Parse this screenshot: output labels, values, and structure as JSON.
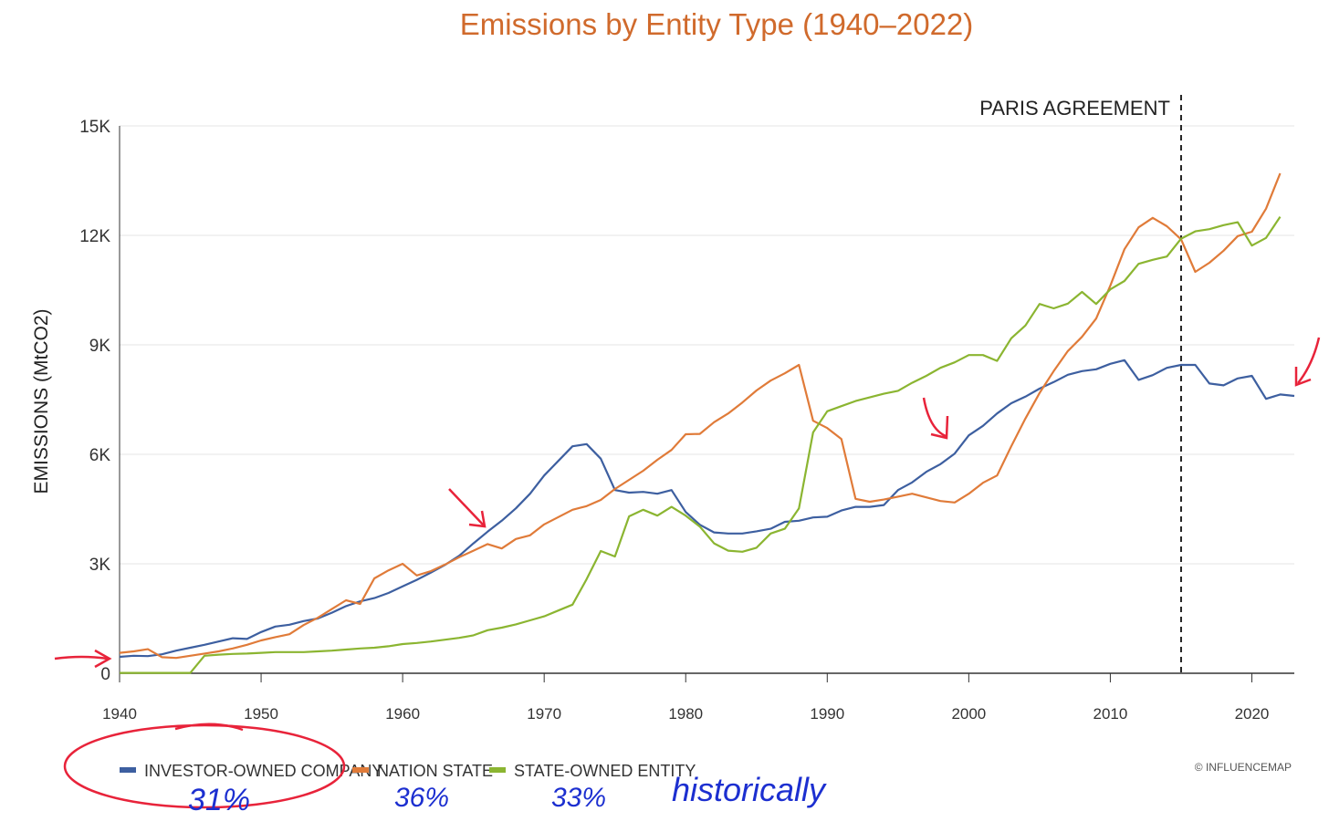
{
  "chart_data": {
    "type": "line",
    "title": "Emissions by Entity Type (1940–2022)",
    "ylabel": "EMISSIONS (MtCO2)",
    "xlabel": "",
    "xlim": [
      1940,
      2023
    ],
    "ylim": [
      0,
      15000
    ],
    "x_ticks": [
      1940,
      1950,
      1960,
      1970,
      1980,
      1990,
      2000,
      2010,
      2020
    ],
    "y_ticks": [
      {
        "value": 0,
        "label": "0"
      },
      {
        "value": 3000,
        "label": "3K"
      },
      {
        "value": 6000,
        "label": "6K"
      },
      {
        "value": 9000,
        "label": "9K"
      },
      {
        "value": 12000,
        "label": "12K"
      },
      {
        "value": 15000,
        "label": "15K"
      }
    ],
    "grid": "horizontal",
    "legend_position": "bottom-left",
    "credit": "© INFLUENCEMAP",
    "annotations": [
      {
        "type": "vertical-dashed-line",
        "x": 2015,
        "label": "PARIS AGREEMENT"
      }
    ],
    "series": [
      {
        "name": "INVESTOR-OWNED COMPANY",
        "color": "#3d5fa0",
        "points": [
          [
            1940,
            450
          ],
          [
            1941,
            480
          ],
          [
            1942,
            470
          ],
          [
            1943,
            520
          ],
          [
            1944,
            620
          ],
          [
            1945,
            700
          ],
          [
            1946,
            780
          ],
          [
            1947,
            870
          ],
          [
            1948,
            960
          ],
          [
            1949,
            940
          ],
          [
            1950,
            1130
          ],
          [
            1951,
            1280
          ],
          [
            1952,
            1330
          ],
          [
            1953,
            1430
          ],
          [
            1954,
            1500
          ],
          [
            1955,
            1660
          ],
          [
            1956,
            1840
          ],
          [
            1957,
            1970
          ],
          [
            1958,
            2060
          ],
          [
            1959,
            2200
          ],
          [
            1960,
            2380
          ],
          [
            1961,
            2560
          ],
          [
            1962,
            2760
          ],
          [
            1963,
            2970
          ],
          [
            1964,
            3220
          ],
          [
            1965,
            3560
          ],
          [
            1966,
            3880
          ],
          [
            1967,
            4180
          ],
          [
            1968,
            4520
          ],
          [
            1969,
            4920
          ],
          [
            1970,
            5420
          ],
          [
            1971,
            5820
          ],
          [
            1972,
            6220
          ],
          [
            1973,
            6280
          ],
          [
            1974,
            5880
          ],
          [
            1975,
            5020
          ],
          [
            1976,
            4950
          ],
          [
            1977,
            4970
          ],
          [
            1978,
            4920
          ],
          [
            1979,
            5020
          ],
          [
            1980,
            4420
          ],
          [
            1981,
            4070
          ],
          [
            1982,
            3860
          ],
          [
            1983,
            3830
          ],
          [
            1984,
            3830
          ],
          [
            1985,
            3890
          ],
          [
            1986,
            3960
          ],
          [
            1987,
            4150
          ],
          [
            1988,
            4180
          ],
          [
            1989,
            4270
          ],
          [
            1990,
            4290
          ],
          [
            1991,
            4460
          ],
          [
            1992,
            4560
          ],
          [
            1993,
            4560
          ],
          [
            1994,
            4610
          ],
          [
            1995,
            5020
          ],
          [
            1996,
            5230
          ],
          [
            1997,
            5520
          ],
          [
            1998,
            5730
          ],
          [
            1999,
            6020
          ],
          [
            2000,
            6520
          ],
          [
            2001,
            6780
          ],
          [
            2002,
            7120
          ],
          [
            2003,
            7400
          ],
          [
            2004,
            7580
          ],
          [
            2005,
            7800
          ],
          [
            2006,
            7980
          ],
          [
            2007,
            8180
          ],
          [
            2008,
            8280
          ],
          [
            2009,
            8330
          ],
          [
            2010,
            8480
          ],
          [
            2011,
            8580
          ],
          [
            2012,
            8040
          ],
          [
            2013,
            8170
          ],
          [
            2014,
            8370
          ],
          [
            2015,
            8450
          ],
          [
            2016,
            8450
          ],
          [
            2017,
            7940
          ],
          [
            2018,
            7890
          ],
          [
            2019,
            8080
          ],
          [
            2020,
            8150
          ],
          [
            2021,
            7520
          ],
          [
            2022,
            7640
          ],
          [
            2023,
            7600
          ]
        ]
      },
      {
        "name": "NATION STATE",
        "color": "#e07b39",
        "points": [
          [
            1940,
            560
          ],
          [
            1941,
            600
          ],
          [
            1942,
            660
          ],
          [
            1943,
            440
          ],
          [
            1944,
            420
          ],
          [
            1945,
            480
          ],
          [
            1946,
            540
          ],
          [
            1947,
            600
          ],
          [
            1948,
            680
          ],
          [
            1949,
            780
          ],
          [
            1950,
            900
          ],
          [
            1951,
            990
          ],
          [
            1952,
            1070
          ],
          [
            1953,
            1320
          ],
          [
            1954,
            1520
          ],
          [
            1955,
            1760
          ],
          [
            1956,
            2000
          ],
          [
            1957,
            1900
          ],
          [
            1958,
            2600
          ],
          [
            1959,
            2820
          ],
          [
            1960,
            3000
          ],
          [
            1961,
            2680
          ],
          [
            1962,
            2800
          ],
          [
            1963,
            2980
          ],
          [
            1964,
            3180
          ],
          [
            1965,
            3360
          ],
          [
            1966,
            3540
          ],
          [
            1967,
            3420
          ],
          [
            1968,
            3680
          ],
          [
            1969,
            3780
          ],
          [
            1970,
            4080
          ],
          [
            1971,
            4280
          ],
          [
            1972,
            4480
          ],
          [
            1973,
            4580
          ],
          [
            1974,
            4750
          ],
          [
            1975,
            5050
          ],
          [
            1976,
            5300
          ],
          [
            1977,
            5550
          ],
          [
            1978,
            5850
          ],
          [
            1979,
            6120
          ],
          [
            1980,
            6550
          ],
          [
            1981,
            6560
          ],
          [
            1982,
            6880
          ],
          [
            1983,
            7120
          ],
          [
            1984,
            7420
          ],
          [
            1985,
            7750
          ],
          [
            1986,
            8020
          ],
          [
            1987,
            8220
          ],
          [
            1988,
            8450
          ],
          [
            1989,
            6920
          ],
          [
            1990,
            6720
          ],
          [
            1991,
            6420
          ],
          [
            1992,
            4780
          ],
          [
            1993,
            4700
          ],
          [
            1994,
            4760
          ],
          [
            1995,
            4840
          ],
          [
            1996,
            4920
          ],
          [
            1997,
            4820
          ],
          [
            1998,
            4720
          ],
          [
            1999,
            4680
          ],
          [
            2000,
            4920
          ],
          [
            2001,
            5220
          ],
          [
            2002,
            5420
          ],
          [
            2003,
            6220
          ],
          [
            2004,
            6980
          ],
          [
            2005,
            7680
          ],
          [
            2006,
            8280
          ],
          [
            2007,
            8830
          ],
          [
            2008,
            9220
          ],
          [
            2009,
            9720
          ],
          [
            2010,
            10620
          ],
          [
            2011,
            11620
          ],
          [
            2012,
            12220
          ],
          [
            2013,
            12480
          ],
          [
            2014,
            12250
          ],
          [
            2015,
            11890
          ],
          [
            2016,
            11000
          ],
          [
            2017,
            11250
          ],
          [
            2018,
            11580
          ],
          [
            2019,
            11980
          ],
          [
            2020,
            12100
          ],
          [
            2021,
            12730
          ],
          [
            2022,
            13700
          ]
        ]
      },
      {
        "name": "STATE-OWNED ENTITY",
        "color": "#8bb531",
        "points": [
          [
            1940,
            10
          ],
          [
            1941,
            10
          ],
          [
            1942,
            10
          ],
          [
            1943,
            10
          ],
          [
            1944,
            10
          ],
          [
            1945,
            10
          ],
          [
            1946,
            480
          ],
          [
            1947,
            510
          ],
          [
            1948,
            530
          ],
          [
            1949,
            540
          ],
          [
            1950,
            560
          ],
          [
            1951,
            580
          ],
          [
            1952,
            580
          ],
          [
            1953,
            580
          ],
          [
            1954,
            600
          ],
          [
            1955,
            620
          ],
          [
            1956,
            650
          ],
          [
            1957,
            680
          ],
          [
            1958,
            700
          ],
          [
            1959,
            740
          ],
          [
            1960,
            800
          ],
          [
            1961,
            830
          ],
          [
            1962,
            870
          ],
          [
            1963,
            920
          ],
          [
            1964,
            970
          ],
          [
            1965,
            1040
          ],
          [
            1966,
            1180
          ],
          [
            1967,
            1250
          ],
          [
            1968,
            1340
          ],
          [
            1969,
            1450
          ],
          [
            1970,
            1560
          ],
          [
            1971,
            1720
          ],
          [
            1972,
            1880
          ],
          [
            1973,
            2580
          ],
          [
            1974,
            3350
          ],
          [
            1975,
            3200
          ],
          [
            1976,
            4300
          ],
          [
            1977,
            4480
          ],
          [
            1978,
            4320
          ],
          [
            1979,
            4560
          ],
          [
            1980,
            4320
          ],
          [
            1981,
            4020
          ],
          [
            1982,
            3560
          ],
          [
            1983,
            3360
          ],
          [
            1984,
            3330
          ],
          [
            1985,
            3440
          ],
          [
            1986,
            3830
          ],
          [
            1987,
            3960
          ],
          [
            1988,
            4520
          ],
          [
            1989,
            6600
          ],
          [
            1990,
            7180
          ],
          [
            1991,
            7320
          ],
          [
            1992,
            7460
          ],
          [
            1993,
            7560
          ],
          [
            1994,
            7660
          ],
          [
            1995,
            7740
          ],
          [
            1996,
            7960
          ],
          [
            1997,
            8150
          ],
          [
            1998,
            8370
          ],
          [
            1999,
            8520
          ],
          [
            2000,
            8720
          ],
          [
            2001,
            8720
          ],
          [
            2002,
            8560
          ],
          [
            2003,
            9180
          ],
          [
            2004,
            9530
          ],
          [
            2005,
            10120
          ],
          [
            2006,
            10000
          ],
          [
            2007,
            10130
          ],
          [
            2008,
            10450
          ],
          [
            2009,
            10120
          ],
          [
            2010,
            10520
          ],
          [
            2011,
            10750
          ],
          [
            2012,
            11220
          ],
          [
            2013,
            11330
          ],
          [
            2014,
            11420
          ],
          [
            2015,
            11910
          ],
          [
            2016,
            12110
          ],
          [
            2017,
            12170
          ],
          [
            2018,
            12280
          ],
          [
            2019,
            12360
          ],
          [
            2020,
            11720
          ],
          [
            2021,
            11930
          ],
          [
            2022,
            12510
          ]
        ]
      }
    ]
  },
  "handwriting": {
    "investor_pct": "31%",
    "nation_pct": "36%",
    "state_pct": "33%",
    "note": "historically"
  }
}
